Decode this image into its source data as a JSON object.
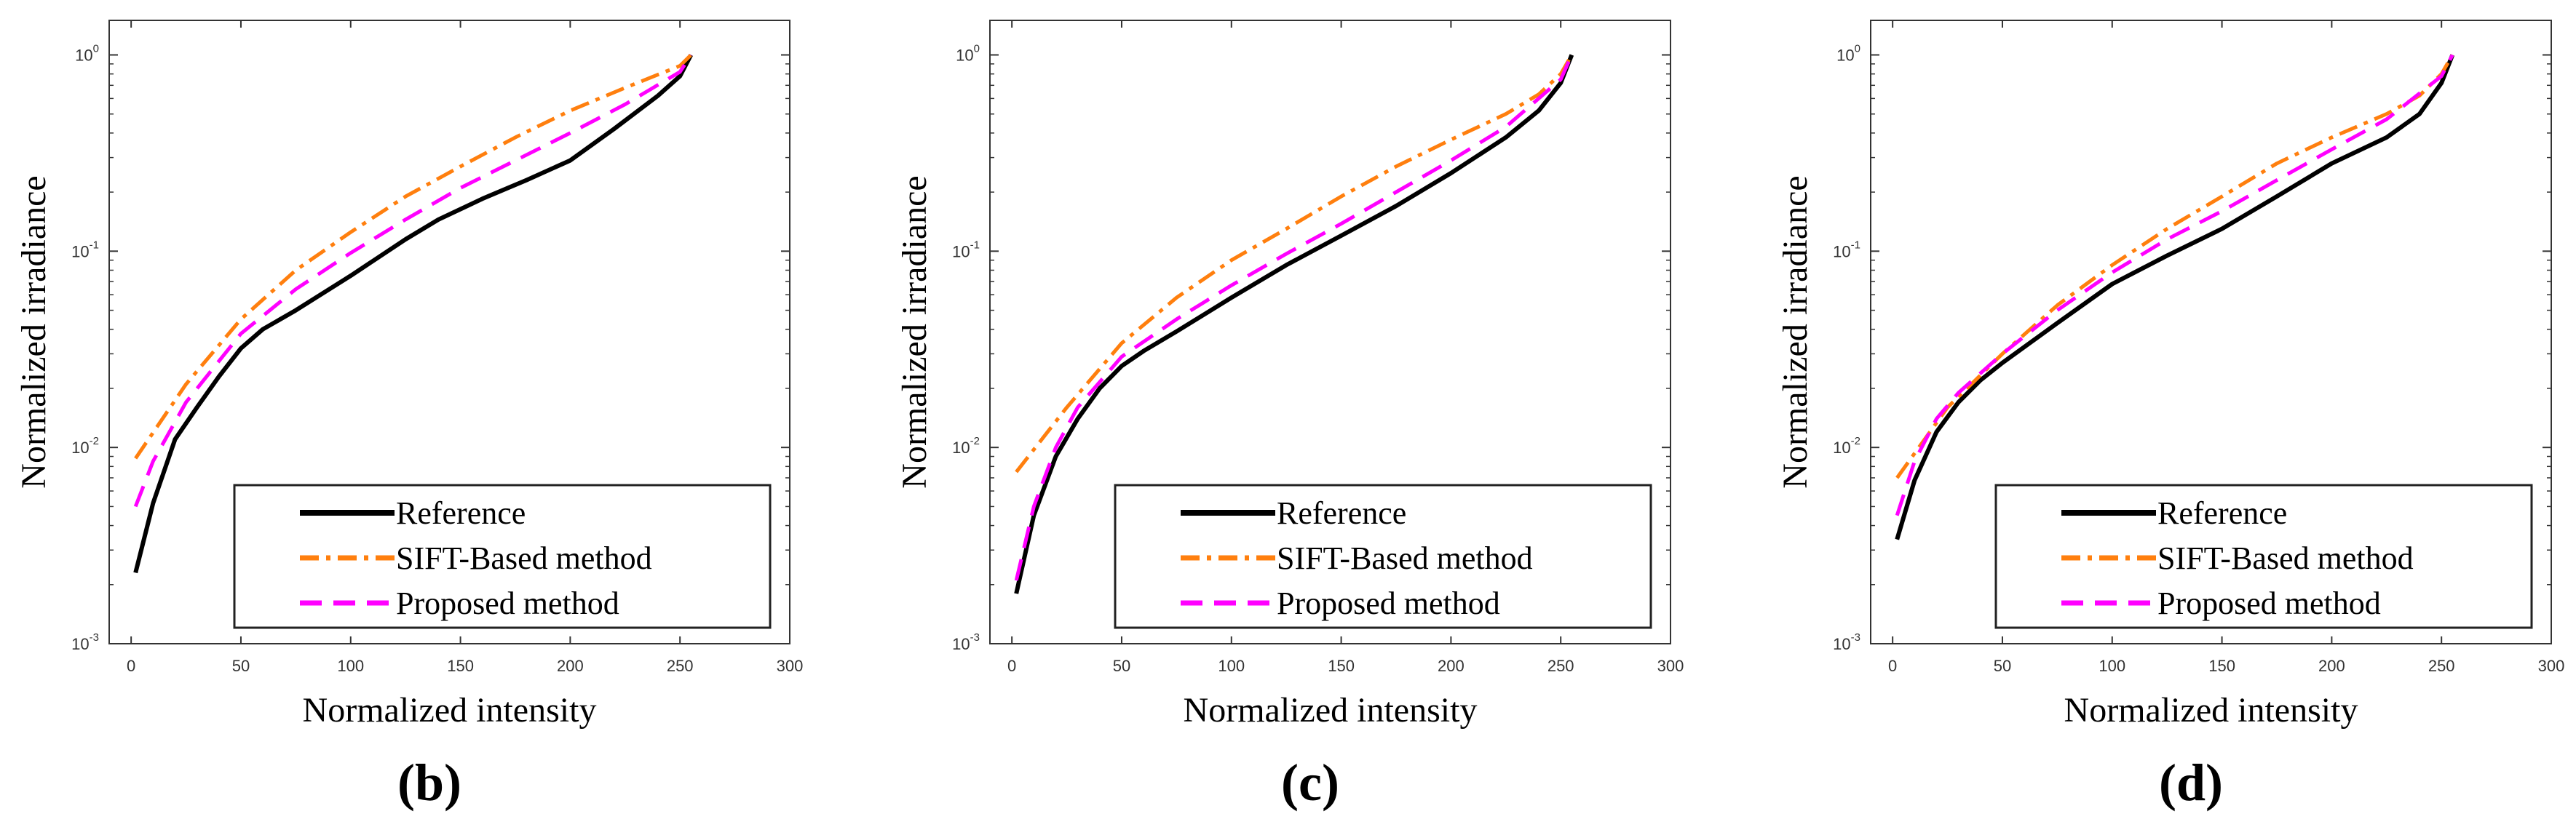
{
  "chart_data": [
    {
      "type": "line",
      "panel_label": "(b)",
      "xlabel": "Normalized intensity",
      "ylabel": "Normalized irradiance",
      "xlim": [
        -10,
        300
      ],
      "ylim": [
        0.001,
        1.5
      ],
      "yscale": "log",
      "xticks": [
        "0",
        "50",
        "100",
        "150",
        "200",
        "250",
        "300"
      ],
      "yticks": [
        {
          "base": "10",
          "exp": "-3"
        },
        {
          "base": "10",
          "exp": "-2"
        },
        {
          "base": "10",
          "exp": "-1"
        },
        {
          "base": "10",
          "exp": "0"
        }
      ],
      "legend_position": "bottom-right",
      "series": [
        {
          "name": "Reference",
          "color": "#000000",
          "style": "solid",
          "x": [
            2,
            10,
            20,
            30,
            40,
            50,
            60,
            75,
            100,
            125,
            140,
            160,
            180,
            200,
            220,
            240,
            250,
            255
          ],
          "y": [
            0.0023,
            0.0052,
            0.011,
            0.016,
            0.023,
            0.032,
            0.04,
            0.05,
            0.075,
            0.115,
            0.145,
            0.185,
            0.23,
            0.29,
            0.42,
            0.62,
            0.78,
            1.0
          ]
        },
        {
          "name": "SIFT-Based method",
          "color": "#ff7f0e",
          "style": "dashdot",
          "x": [
            2,
            25,
            50,
            75,
            100,
            125,
            150,
            175,
            200,
            225,
            250,
            255
          ],
          "y": [
            0.0088,
            0.021,
            0.045,
            0.08,
            0.125,
            0.19,
            0.27,
            0.38,
            0.52,
            0.68,
            0.88,
            1.0
          ]
        },
        {
          "name": "Proposed method",
          "color": "#ff00ff",
          "style": "dashed",
          "x": [
            2,
            10,
            25,
            50,
            75,
            100,
            125,
            150,
            175,
            200,
            225,
            250,
            255
          ],
          "y": [
            0.005,
            0.0085,
            0.017,
            0.038,
            0.064,
            0.098,
            0.145,
            0.21,
            0.29,
            0.4,
            0.56,
            0.82,
            1.0
          ]
        }
      ]
    },
    {
      "type": "line",
      "panel_label": "(c)",
      "xlabel": "Normalized intensity",
      "ylabel": "Normalized irradiance",
      "xlim": [
        -10,
        300
      ],
      "ylim": [
        0.001,
        1.5
      ],
      "yscale": "log",
      "xticks": [
        "0",
        "50",
        "100",
        "150",
        "200",
        "250",
        "300"
      ],
      "yticks": [
        {
          "base": "10",
          "exp": "-3"
        },
        {
          "base": "10",
          "exp": "-2"
        },
        {
          "base": "10",
          "exp": "-1"
        },
        {
          "base": "10",
          "exp": "0"
        }
      ],
      "legend_position": "bottom-right",
      "series": [
        {
          "name": "Reference",
          "color": "#000000",
          "style": "solid",
          "x": [
            2,
            10,
            20,
            30,
            40,
            50,
            60,
            75,
            100,
            125,
            150,
            175,
            200,
            225,
            240,
            250,
            255
          ],
          "y": [
            0.0018,
            0.0045,
            0.009,
            0.014,
            0.02,
            0.026,
            0.031,
            0.039,
            0.058,
            0.085,
            0.12,
            0.17,
            0.25,
            0.38,
            0.52,
            0.72,
            1.0
          ]
        },
        {
          "name": "SIFT-Based method",
          "color": "#ff7f0e",
          "style": "dashdot",
          "x": [
            2,
            25,
            50,
            75,
            100,
            125,
            150,
            175,
            200,
            225,
            240,
            250,
            255
          ],
          "y": [
            0.0075,
            0.016,
            0.034,
            0.058,
            0.09,
            0.13,
            0.19,
            0.27,
            0.37,
            0.5,
            0.63,
            0.8,
            1.0
          ]
        },
        {
          "name": "Proposed method",
          "color": "#ff00ff",
          "style": "dashed",
          "x": [
            2,
            10,
            20,
            30,
            50,
            75,
            100,
            125,
            150,
            175,
            200,
            225,
            250,
            255
          ],
          "y": [
            0.0021,
            0.005,
            0.01,
            0.016,
            0.029,
            0.045,
            0.067,
            0.097,
            0.138,
            0.2,
            0.29,
            0.43,
            0.75,
            1.0
          ]
        }
      ]
    },
    {
      "type": "line",
      "panel_label": "(d)",
      "xlabel": "Normalized intensity",
      "ylabel": "Normalized irradiance",
      "xlim": [
        -10,
        300
      ],
      "ylim": [
        0.001,
        1.5
      ],
      "yscale": "log",
      "xticks": [
        "0",
        "50",
        "100",
        "150",
        "200",
        "250",
        "300"
      ],
      "yticks": [
        {
          "base": "10",
          "exp": "-3"
        },
        {
          "base": "10",
          "exp": "-2"
        },
        {
          "base": "10",
          "exp": "-1"
        },
        {
          "base": "10",
          "exp": "0"
        }
      ],
      "legend_position": "bottom-right",
      "series": [
        {
          "name": "Reference",
          "color": "#000000",
          "style": "solid",
          "x": [
            2,
            10,
            20,
            30,
            40,
            50,
            75,
            100,
            125,
            150,
            175,
            200,
            225,
            240,
            250,
            255
          ],
          "y": [
            0.0034,
            0.0068,
            0.012,
            0.017,
            0.022,
            0.027,
            0.043,
            0.068,
            0.095,
            0.13,
            0.19,
            0.28,
            0.38,
            0.5,
            0.72,
            1.0
          ]
        },
        {
          "name": "SIFT-Based method",
          "color": "#ff7f0e",
          "style": "dashdot",
          "x": [
            2,
            25,
            50,
            75,
            100,
            125,
            150,
            175,
            200,
            225,
            240,
            250,
            255
          ],
          "y": [
            0.007,
            0.016,
            0.03,
            0.053,
            0.085,
            0.13,
            0.19,
            0.28,
            0.38,
            0.5,
            0.62,
            0.8,
            1.0
          ]
        },
        {
          "name": "Proposed method",
          "color": "#ff00ff",
          "style": "dashed",
          "x": [
            2,
            10,
            20,
            30,
            50,
            75,
            100,
            125,
            150,
            175,
            200,
            225,
            250,
            255
          ],
          "y": [
            0.0045,
            0.0085,
            0.014,
            0.019,
            0.03,
            0.05,
            0.078,
            0.115,
            0.16,
            0.23,
            0.33,
            0.47,
            0.78,
            1.0
          ]
        }
      ]
    }
  ]
}
